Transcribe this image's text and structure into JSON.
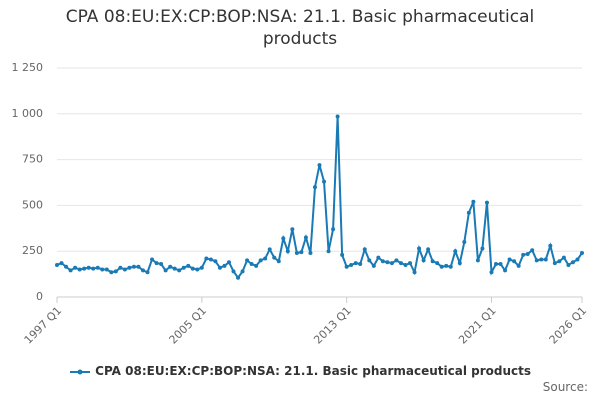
{
  "chart_data": {
    "type": "line",
    "title": "CPA 08:EU:EX:CP:BOP:NSA: 21.1. Basic pharmaceutical products",
    "categories": [
      "1997 Q1",
      null,
      null,
      null,
      null,
      null,
      null,
      null,
      null,
      null,
      null,
      null,
      null,
      null,
      null,
      null,
      null,
      null,
      null,
      null,
      null,
      null,
      null,
      null,
      null,
      null,
      null,
      null,
      null,
      null,
      null,
      null,
      "2005 Q1",
      null,
      null,
      null,
      null,
      null,
      null,
      null,
      null,
      null,
      null,
      null,
      null,
      null,
      null,
      null,
      null,
      null,
      null,
      null,
      null,
      null,
      null,
      null,
      null,
      null,
      null,
      null,
      null,
      null,
      null,
      null,
      "2013 Q1",
      null,
      null,
      null,
      null,
      null,
      null,
      null,
      null,
      null,
      null,
      null,
      null,
      null,
      null,
      null,
      null,
      null,
      null,
      null,
      null,
      null,
      null,
      null,
      null,
      null,
      null,
      null,
      null,
      null,
      null,
      null,
      "2021 Q1",
      null,
      null,
      null,
      null,
      null,
      null,
      null,
      null,
      null,
      null,
      null,
      null,
      null,
      null,
      null,
      null,
      null,
      null,
      null,
      "2026 Q1"
    ],
    "series": [
      {
        "name": "CPA 08:EU:EX:CP:BOP:NSA: 21.1. Basic pharmaceutical products",
        "color": "#1a7ab5",
        "values": [
          175,
          185,
          165,
          145,
          160,
          150,
          155,
          160,
          155,
          160,
          150,
          150,
          135,
          140,
          160,
          150,
          160,
          165,
          165,
          145,
          135,
          205,
          185,
          180,
          145,
          165,
          155,
          145,
          160,
          170,
          155,
          150,
          160,
          210,
          205,
          195,
          160,
          170,
          190,
          140,
          105,
          140,
          200,
          180,
          170,
          200,
          210,
          260,
          215,
          195,
          320,
          250,
          370,
          240,
          245,
          325,
          240,
          600,
          720,
          630,
          250,
          370,
          985,
          230,
          165,
          175,
          185,
          180,
          260,
          200,
          170,
          215,
          195,
          190,
          185,
          200,
          185,
          175,
          185,
          135,
          265,
          200,
          260,
          195,
          185,
          165,
          170,
          165,
          250,
          185,
          300,
          460,
          520,
          200,
          265,
          515,
          135,
          180,
          180,
          145,
          205,
          195,
          170,
          230,
          235,
          255,
          200,
          205,
          205,
          280,
          185,
          195,
          215,
          175,
          190,
          205,
          240
        ]
      }
    ],
    "ylim": [
      0,
      1250
    ],
    "yticks": [
      0,
      250,
      500,
      750,
      {
        "value": 1000,
        "label": "1 000"
      },
      {
        "value": 1250,
        "label": "1 250"
      }
    ],
    "grid": true,
    "source_label": "Source:"
  }
}
